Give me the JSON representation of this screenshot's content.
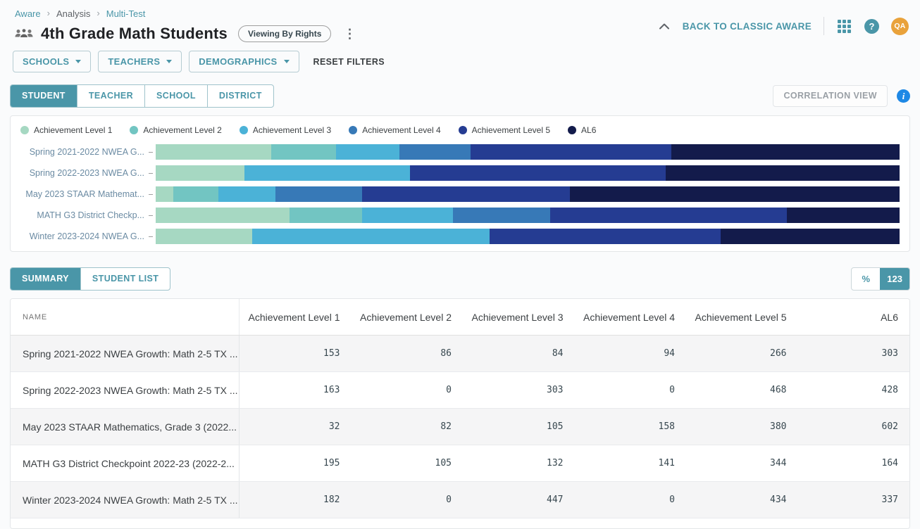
{
  "breadcrumb": {
    "items": [
      "Aware",
      "Analysis",
      "Multi-Test"
    ]
  },
  "header": {
    "title": "4th Grade Math Students",
    "viewing_badge": "Viewing By Rights",
    "back_link": "BACK TO CLASSIC AWARE",
    "avatar_initials": "QA"
  },
  "icons": {
    "kebab": "⋮",
    "breadcrumb_sep": "›",
    "help": "?",
    "info": "i"
  },
  "filters": {
    "buttons": [
      "SCHOOLS",
      "TEACHERS",
      "DEMOGRAPHICS"
    ],
    "reset_label": "RESET FILTERS"
  },
  "view_tabs": {
    "items": [
      {
        "label": "STUDENT",
        "active": true
      },
      {
        "label": "TEACHER",
        "active": false
      },
      {
        "label": "SCHOOL",
        "active": false
      },
      {
        "label": "DISTRICT",
        "active": false
      }
    ],
    "correlation_label": "CORRELATION VIEW"
  },
  "chart_data": {
    "type": "bar",
    "orientation": "horizontal",
    "stacked": "100%",
    "legend_position": "top",
    "grid": false,
    "categories": [
      "Spring 2021-2022 NWEA G...",
      "Spring 2022-2023 NWEA G...",
      "May 2023 STAAR Mathemat...",
      "MATH G3 District Checkp...",
      "Winter 2023-2024 NWEA G..."
    ],
    "series": [
      {
        "name": "Achievement Level 1",
        "color": "#a6d8c2",
        "values": [
          153,
          163,
          32,
          195,
          182
        ]
      },
      {
        "name": "Achievement Level 2",
        "color": "#72c5c2",
        "values": [
          86,
          0,
          82,
          105,
          0
        ]
      },
      {
        "name": "Achievement Level 3",
        "color": "#4bb2d7",
        "values": [
          84,
          303,
          105,
          132,
          447
        ]
      },
      {
        "name": "Achievement Level 4",
        "color": "#3779b7",
        "values": [
          94,
          0,
          158,
          141,
          0
        ]
      },
      {
        "name": "Achievement Level 5",
        "color": "#253c92",
        "values": [
          266,
          468,
          380,
          344,
          434
        ]
      },
      {
        "name": "AL6",
        "color": "#131b4b",
        "values": [
          303,
          428,
          602,
          164,
          337
        ]
      }
    ]
  },
  "summary_section": {
    "tabs": [
      {
        "label": "SUMMARY",
        "active": true
      },
      {
        "label": "STUDENT LIST",
        "active": false
      }
    ],
    "value_toggle": [
      {
        "label": "%",
        "active": false
      },
      {
        "label": "123",
        "active": true
      }
    ]
  },
  "table": {
    "columns": [
      "NAME",
      "Achievement Level 1",
      "Achievement Level 2",
      "Achievement Level 3",
      "Achievement Level 4",
      "Achievement Level 5",
      "AL6"
    ],
    "rows": [
      {
        "name": "Spring 2021-2022 NWEA Growth: Math 2-5 TX ...",
        "values": [
          153,
          86,
          84,
          94,
          266,
          303
        ]
      },
      {
        "name": "Spring 2022-2023 NWEA Growth: Math 2-5 TX ...",
        "values": [
          163,
          0,
          303,
          0,
          468,
          428
        ]
      },
      {
        "name": "May 2023 STAAR Mathematics, Grade 3 (2022...",
        "values": [
          32,
          82,
          105,
          158,
          380,
          602
        ]
      },
      {
        "name": "MATH G3 District Checkpoint 2022-23 (2022-2...",
        "values": [
          195,
          105,
          132,
          141,
          344,
          164
        ]
      },
      {
        "name": "Winter 2023-2024 NWEA Growth: Math 2-5 TX ...",
        "values": [
          182,
          0,
          447,
          0,
          434,
          337
        ]
      }
    ]
  },
  "colors": {
    "accent_teal": "#4a96a8",
    "info_blue": "#1e88e5",
    "avatar_orange": "#e9a23b"
  }
}
